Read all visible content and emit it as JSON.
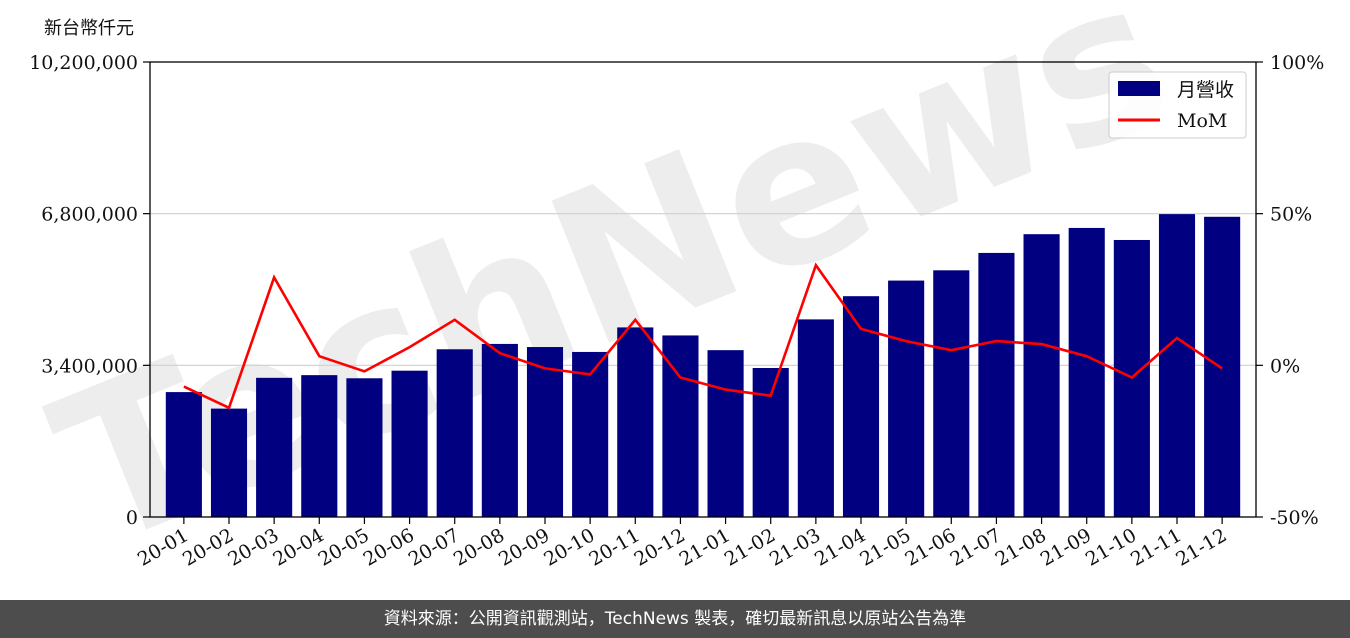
{
  "chart_data": {
    "type": "bar+line",
    "y_unit_label": "新台幣仟元",
    "categories": [
      "20-01",
      "20-02",
      "20-03",
      "20-04",
      "20-05",
      "20-06",
      "20-07",
      "20-08",
      "20-09",
      "20-10",
      "20-11",
      "20-12",
      "21-01",
      "21-02",
      "21-03",
      "21-04",
      "21-05",
      "21-06",
      "21-07",
      "21-08",
      "21-09",
      "21-10",
      "21-11",
      "21-12"
    ],
    "series": [
      {
        "name": "月營收",
        "axis": "left",
        "kind": "bar",
        "color": "#000080",
        "values": [
          2800000,
          2430000,
          3120000,
          3180000,
          3110000,
          3280000,
          3760000,
          3880000,
          3810000,
          3700000,
          4250000,
          4070000,
          3740000,
          3340000,
          4430000,
          4950000,
          5300000,
          5530000,
          5920000,
          6340000,
          6480000,
          6210000,
          6790000,
          6730000
        ]
      },
      {
        "name": "MoM",
        "axis": "right",
        "kind": "line",
        "color": "#ff0000",
        "values": [
          -7,
          -14,
          29,
          3,
          -2,
          6,
          15,
          4,
          -1,
          -3,
          15,
          -4,
          -8,
          -10,
          33,
          12,
          8,
          5,
          8,
          7,
          3,
          -4,
          9,
          -1
        ]
      }
    ],
    "left_axis": {
      "ylim": [
        0,
        10200000
      ],
      "ticks": [
        "0",
        "3,400,000",
        "6,800,000",
        "10,200,000"
      ],
      "tick_values": [
        0,
        3400000,
        6800000,
        10200000
      ]
    },
    "right_axis": {
      "ylim": [
        -50,
        100
      ],
      "ticks": [
        "-50%",
        "0%",
        "50%",
        "100%"
      ],
      "tick_values": [
        -50,
        0,
        50,
        100
      ]
    },
    "grid": "horizontal",
    "legend": "top-right",
    "watermark": "TechNews"
  },
  "footer": {
    "text": "資料來源：公開資訊觀測站，TechNews 製表，確切最新訊息以原站公告為準"
  }
}
